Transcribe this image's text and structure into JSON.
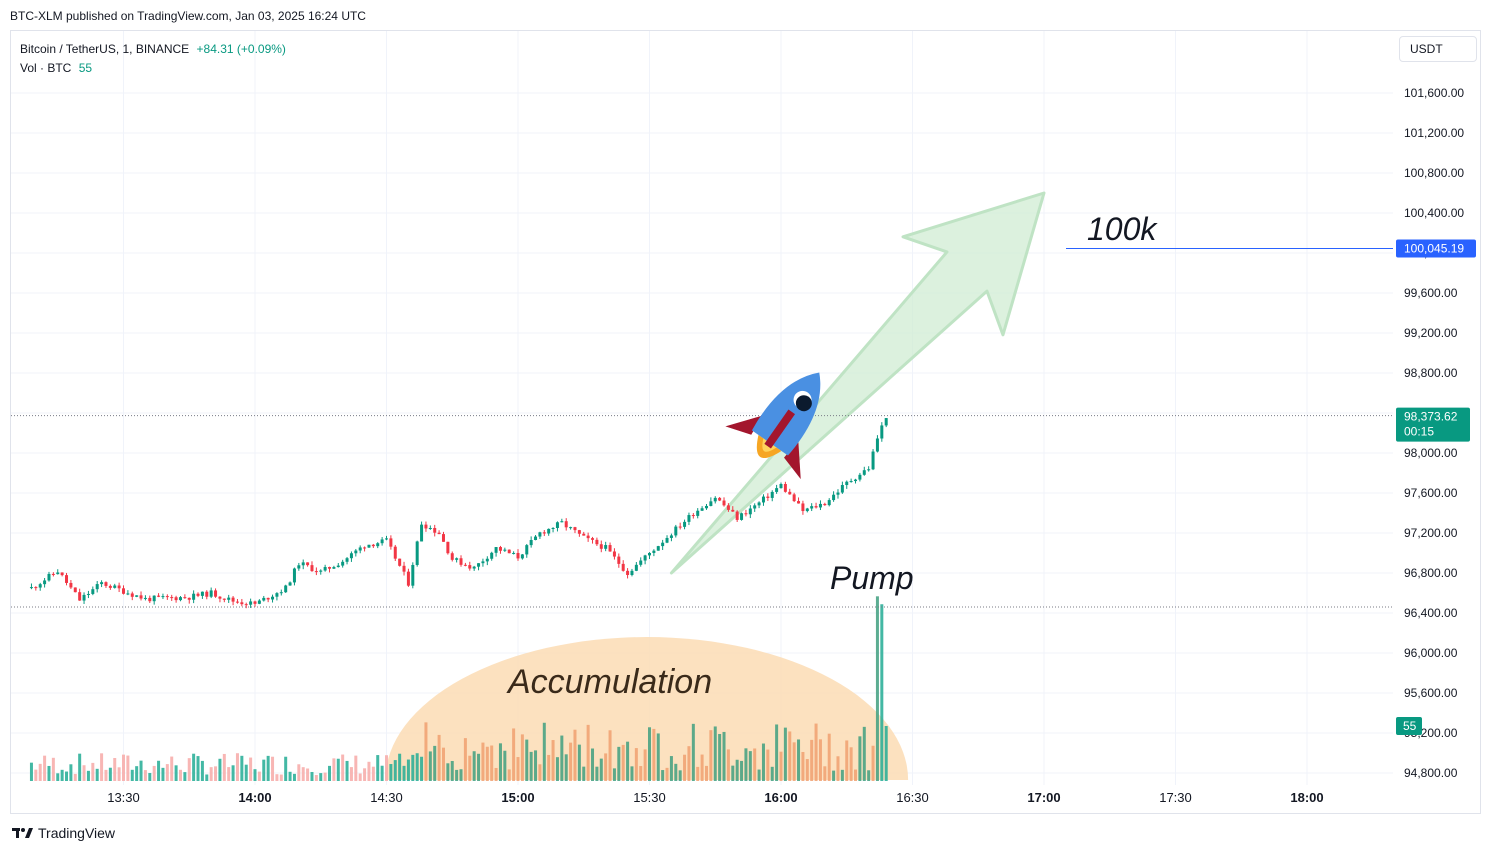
{
  "header": {
    "published": "BTC-XLM published on TradingView.com, Jan 03, 2025 16:24 UTC"
  },
  "legend": {
    "symbol": "Bitcoin / TetherUS, 1, BINANCE",
    "change": "+84.31 (+0.09%)",
    "volume_label": "Vol · BTC",
    "volume_value": "55"
  },
  "toolbar": {
    "currency": "USDT"
  },
  "footer": {
    "brand": "TradingView"
  },
  "colors": {
    "up": "#089981",
    "down": "#f23645",
    "accent": "#2962ff"
  },
  "chart_data": {
    "type": "candlestick",
    "ylim": [
      94700,
      101900
    ],
    "y_ticks": [
      "101,600.00",
      "101,200.00",
      "100,800.00",
      "100,400.00",
      "100,000.00",
      "99,600.00",
      "99,200.00",
      "98,800.00",
      "98,400.00",
      "98,000.00",
      "97,600.00",
      "97,200.00",
      "96,800.00",
      "96,400.00",
      "96,000.00",
      "95,600.00",
      "95,200.00",
      "94,800.00"
    ],
    "x_ticks": [
      "13:30",
      "14:00",
      "14:30",
      "15:00",
      "15:30",
      "16:00",
      "16:30",
      "17:00",
      "17:30",
      "18:00"
    ],
    "x_tick_bold": [
      "14:00",
      "15:00",
      "16:00",
      "17:00",
      "18:00"
    ],
    "price_series": [
      {
        "t": "13:09",
        "p": 96650
      },
      {
        "t": "13:15",
        "p": 96820
      },
      {
        "t": "13:20",
        "p": 96530
      },
      {
        "t": "13:25",
        "p": 96700
      },
      {
        "t": "13:35",
        "p": 96540
      },
      {
        "t": "13:45",
        "p": 96560
      },
      {
        "t": "13:50",
        "p": 96600
      },
      {
        "t": "13:55",
        "p": 96520
      },
      {
        "t": "14:00",
        "p": 96490
      },
      {
        "t": "14:07",
        "p": 96650
      },
      {
        "t": "14:10",
        "p": 96900
      },
      {
        "t": "14:15",
        "p": 96810
      },
      {
        "t": "14:20",
        "p": 96920
      },
      {
        "t": "14:25",
        "p": 97080
      },
      {
        "t": "14:30",
        "p": 97120
      },
      {
        "t": "14:35",
        "p": 96700
      },
      {
        "t": "14:38",
        "p": 97300
      },
      {
        "t": "14:42",
        "p": 97200
      },
      {
        "t": "14:45",
        "p": 96940
      },
      {
        "t": "14:50",
        "p": 96850
      },
      {
        "t": "14:55",
        "p": 97050
      },
      {
        "t": "15:00",
        "p": 96960
      },
      {
        "t": "15:05",
        "p": 97200
      },
      {
        "t": "15:10",
        "p": 97300
      },
      {
        "t": "15:15",
        "p": 97150
      },
      {
        "t": "15:20",
        "p": 97050
      },
      {
        "t": "15:25",
        "p": 96800
      },
      {
        "t": "15:30",
        "p": 97000
      },
      {
        "t": "15:35",
        "p": 97200
      },
      {
        "t": "15:40",
        "p": 97400
      },
      {
        "t": "15:45",
        "p": 97560
      },
      {
        "t": "15:50",
        "p": 97350
      },
      {
        "t": "15:55",
        "p": 97500
      },
      {
        "t": "16:00",
        "p": 97680
      },
      {
        "t": "16:05",
        "p": 97420
      },
      {
        "t": "16:10",
        "p": 97500
      },
      {
        "t": "16:15",
        "p": 97700
      },
      {
        "t": "16:20",
        "p": 97850
      },
      {
        "t": "16:22",
        "p": 98150
      },
      {
        "t": "16:24",
        "p": 98373.62
      }
    ],
    "last_price": {
      "value": 98373.62,
      "label": "98,373.62",
      "countdown": "00:15"
    },
    "horizontal_line": {
      "value": 100045.19,
      "label": "100,045.19"
    },
    "dotted_level": 96460,
    "volume": {
      "last_value": 55,
      "label": "55",
      "spike_times": [
        "16:22",
        "16:23",
        "16:24"
      ]
    },
    "annotations": {
      "target": "100k",
      "pump": "Pump",
      "accumulation": "Accumulation",
      "arrow": {
        "from": {
          "t": "15:35",
          "p": 96800
        },
        "to": {
          "t": "17:00",
          "p": 100600
        }
      }
    }
  }
}
